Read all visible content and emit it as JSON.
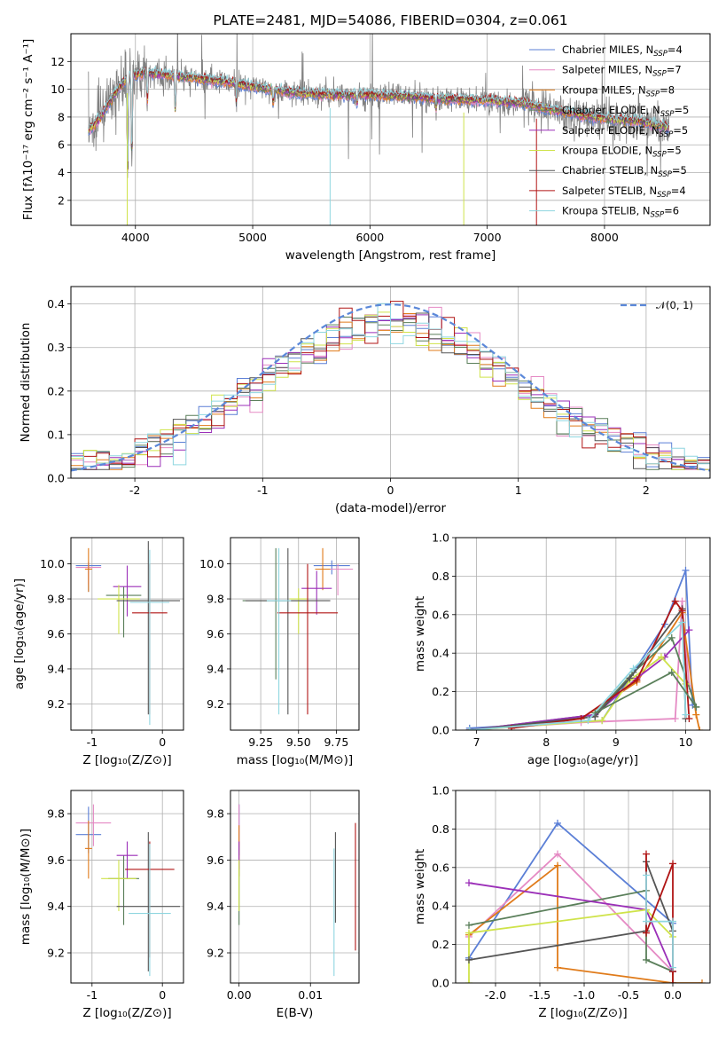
{
  "chart_data": [
    {
      "id": "spectrum",
      "type": "line",
      "title": "PLATE=2481, MJD=54086, FIBERID=0304, z=0.061",
      "xlabel": "wavelength [Angstrom, rest frame]",
      "ylabel": "Flux [fλ10⁻¹⁷ erg cm⁻² s⁻¹ A⁻¹]",
      "xlim": [
        3450,
        8900
      ],
      "ylim": [
        0.2,
        14.0
      ],
      "xticks": [
        4000,
        5000,
        6000,
        7000,
        8000
      ],
      "yticks": [
        2,
        4,
        6,
        8,
        10,
        12
      ],
      "legend_position": "upper right",
      "legend": [
        {
          "label": "Chabrier MILES, N",
          "sub": "SSP",
          "tail": "=4",
          "color": "#5b7fd6"
        },
        {
          "label": "Salpeter MILES, N",
          "sub": "SSP",
          "tail": "=7",
          "color": "#e58ac4"
        },
        {
          "label": "Kroupa MILES, N",
          "sub": "SSP",
          "tail": "=8",
          "color": "#e07b1a"
        },
        {
          "label": "Chabrier ELODIE, N",
          "sub": "SSP",
          "tail": "=5",
          "color": "#5a7f5a"
        },
        {
          "label": "Salpeter ELODIE, N",
          "sub": "SSP",
          "tail": "=5",
          "color": "#9b2fb8"
        },
        {
          "label": "Kroupa ELODIE, N",
          "sub": "SSP",
          "tail": "=5",
          "color": "#cfe34a"
        },
        {
          "label": "Chabrier STELIB, N",
          "sub": "SSP",
          "tail": "=5",
          "color": "#555555"
        },
        {
          "label": "Salpeter STELIB, N",
          "sub": "SSP",
          "tail": "=4",
          "color": "#b01515"
        },
        {
          "label": "Kroupa STELIB, N",
          "sub": "SSP",
          "tail": "=6",
          "color": "#8fd6e0"
        }
      ],
      "continuum": [
        [
          3600,
          7.0
        ],
        [
          3700,
          8.0
        ],
        [
          3850,
          10.0
        ],
        [
          3950,
          11.0
        ],
        [
          4100,
          11.2
        ],
        [
          4300,
          11.0
        ],
        [
          4500,
          10.8
        ],
        [
          4800,
          10.5
        ],
        [
          5000,
          10.2
        ],
        [
          5300,
          9.8
        ],
        [
          5600,
          9.6
        ],
        [
          6000,
          9.6
        ],
        [
          6300,
          9.5
        ],
        [
          6600,
          9.3
        ],
        [
          7000,
          9.2
        ],
        [
          7300,
          9.0
        ],
        [
          7500,
          8.6
        ],
        [
          7700,
          8.3
        ],
        [
          7900,
          8.0
        ],
        [
          8100,
          7.8
        ],
        [
          8300,
          7.7
        ],
        [
          8550,
          7.2
        ]
      ],
      "absorption_lines": [
        [
          3934,
          3.7
        ],
        [
          3969,
          4.5
        ],
        [
          4102,
          8.9
        ],
        [
          4340,
          8.2
        ],
        [
          4861,
          9.0
        ],
        [
          5175,
          8.8
        ],
        [
          5890,
          8.8
        ],
        [
          6563,
          8.6
        ]
      ],
      "model_dropouts": [
        [
          3930,
          0.2,
          "#cfe34a"
        ],
        [
          5660,
          0.2,
          "#8fd6e0"
        ],
        [
          6800,
          0.2,
          "#cfe34a"
        ],
        [
          7420,
          0.2,
          "#b01515"
        ]
      ]
    },
    {
      "id": "residuals",
      "type": "histogram",
      "xlabel": "(data-model)/error",
      "ylabel": "Normed distribution",
      "xlim": [
        -2.5,
        2.5
      ],
      "ylim": [
        0.0,
        0.44
      ],
      "xticks": [
        -2,
        -1,
        0,
        1,
        2
      ],
      "yticks": [
        0.0,
        0.1,
        0.2,
        0.3,
        0.4
      ],
      "bin_width": 0.1,
      "normal_curve_label": "𝒩(0, 1)",
      "normal_curve_color": "#5b88d9",
      "series_colors": [
        "#5b7fd6",
        "#e58ac4",
        "#e07b1a",
        "#5a7f5a",
        "#9b2fb8",
        "#cfe34a",
        "#555555",
        "#b01515",
        "#8fd6e0"
      ]
    },
    {
      "id": "age_vs_Z",
      "type": "errorbar",
      "xlabel": "Z [log₁₀(Z/Z⊙)]",
      "ylabel": "age  [log₁₀(age/yr)]",
      "xlim": [
        -1.3,
        0.3
      ],
      "ylim": [
        9.05,
        10.15
      ],
      "xticks": [
        -1,
        0
      ],
      "yticks": [
        9.2,
        9.4,
        9.6,
        9.8,
        10.0
      ],
      "points": [
        {
          "x": -1.05,
          "xerr": 0.18,
          "y": 9.99,
          "yerr": [
            0.15,
            0.02
          ],
          "color": "#5b7fd6"
        },
        {
          "x": -1.05,
          "xerr": 0.18,
          "y": 9.98,
          "yerr": [
            0.1,
            0.03
          ],
          "color": "#e58ac4"
        },
        {
          "x": -1.05,
          "xerr": 0.05,
          "y": 9.97,
          "yerr": [
            0.13,
            0.12
          ],
          "color": "#e07b1a"
        },
        {
          "x": -0.55,
          "xerr": 0.25,
          "y": 9.82,
          "yerr": [
            0.24,
            0.05
          ],
          "color": "#5a7f5a"
        },
        {
          "x": -0.5,
          "xerr": 0.2,
          "y": 9.87,
          "yerr": [
            0.17,
            0.12
          ],
          "color": "#9b2fb8"
        },
        {
          "x": -0.62,
          "xerr": 0.3,
          "y": 9.8,
          "yerr": [
            0.2,
            0.08
          ],
          "color": "#cfe34a"
        },
        {
          "x": -0.2,
          "xerr": 0.45,
          "y": 9.79,
          "yerr": [
            0.65,
            0.34
          ],
          "color": "#555555"
        },
        {
          "x": -0.18,
          "xerr": 0.25,
          "y": 9.72,
          "yerr": [
            0.58,
            0.28
          ],
          "color": "#b01515"
        },
        {
          "x": -0.18,
          "xerr": 0.28,
          "y": 9.78,
          "yerr": [
            0.7,
            0.3
          ],
          "color": "#8fd6e0"
        }
      ]
    },
    {
      "id": "age_vs_mass",
      "type": "errorbar",
      "xlabel": "mass [log₁₀(M/M⊙)]",
      "ylabel": "",
      "xlim": [
        9.05,
        9.9
      ],
      "ylim": [
        9.05,
        10.15
      ],
      "xticks": [
        9.25,
        9.5,
        9.75
      ],
      "yticks": [
        9.2,
        9.4,
        9.6,
        9.8,
        10.0
      ],
      "points": [
        {
          "x": 9.72,
          "xerr": 0.12,
          "y": 9.99,
          "yerr": [
            0.05,
            0.03
          ],
          "color": "#5b7fd6"
        },
        {
          "x": 9.76,
          "xerr": 0.1,
          "y": 9.97,
          "yerr": [
            0.15,
            0.03
          ],
          "color": "#e58ac4"
        },
        {
          "x": 9.66,
          "xerr": 0.05,
          "y": 9.97,
          "yerr": [
            0.12,
            0.12
          ],
          "color": "#e07b1a"
        },
        {
          "x": 9.35,
          "xerr": 0.22,
          "y": 9.79,
          "yerr": [
            0.45,
            0.3
          ],
          "color": "#5a7f5a"
        },
        {
          "x": 9.62,
          "xerr": 0.1,
          "y": 9.86,
          "yerr": [
            0.15,
            0.1
          ],
          "color": "#9b2fb8"
        },
        {
          "x": 9.5,
          "xerr": 0.06,
          "y": 9.8,
          "yerr": [
            0.2,
            0.06
          ],
          "color": "#cfe34a"
        },
        {
          "x": 9.43,
          "xerr": 0.28,
          "y": 9.79,
          "yerr": [
            0.65,
            0.3
          ],
          "color": "#555555"
        },
        {
          "x": 9.56,
          "xerr": 0.2,
          "y": 9.72,
          "yerr": [
            0.58,
            0.28
          ],
          "color": "#b01515"
        },
        {
          "x": 9.37,
          "xerr": 0.08,
          "y": 9.79,
          "yerr": [
            0.65,
            0.3
          ],
          "color": "#8fd6e0"
        }
      ]
    },
    {
      "id": "weight_vs_age",
      "type": "line",
      "xlabel": "age  [log₁₀(age/yr)]",
      "ylabel": "mass weight",
      "xlim": [
        6.7,
        10.35
      ],
      "ylim": [
        0.0,
        1.0
      ],
      "xticks": [
        7,
        8,
        9,
        10
      ],
      "yticks": [
        0.0,
        0.2,
        0.4,
        0.6,
        0.8,
        1.0
      ],
      "series": [
        {
          "color": "#5b7fd6",
          "x": [
            6.9,
            8.8,
            9.7,
            10.0,
            10.1
          ],
          "y": [
            0.01,
            0.05,
            0.55,
            0.83,
            0.13
          ]
        },
        {
          "color": "#e58ac4",
          "x": [
            6.9,
            8.5,
            9.85,
            9.95,
            10.05
          ],
          "y": [
            0.0,
            0.04,
            0.06,
            0.67,
            0.23
          ]
        },
        {
          "color": "#e07b1a",
          "x": [
            6.9,
            8.5,
            9.3,
            9.95,
            10.15,
            10.2
          ],
          "y": [
            0.0,
            0.06,
            0.25,
            0.61,
            0.08,
            0.0
          ]
        },
        {
          "color": "#5a7f5a",
          "x": [
            6.9,
            8.7,
            9.25,
            9.8,
            10.15
          ],
          "y": [
            0.0,
            0.08,
            0.3,
            0.48,
            0.12
          ]
        },
        {
          "color": "#9b2fb8",
          "x": [
            6.9,
            8.7,
            9.3,
            9.7,
            10.05
          ],
          "y": [
            0.0,
            0.08,
            0.27,
            0.38,
            0.52
          ]
        },
        {
          "color": "#cfe34a",
          "x": [
            6.9,
            8.8,
            9.2,
            9.65,
            10.0
          ],
          "y": [
            0.0,
            0.05,
            0.26,
            0.38,
            0.24
          ]
        },
        {
          "color": "#555555",
          "x": [
            6.9,
            8.7,
            9.2,
            9.95,
            10.0
          ],
          "y": [
            0.0,
            0.07,
            0.27,
            0.63,
            0.06
          ]
        },
        {
          "color": "#b01515",
          "x": [
            7.5,
            8.5,
            9.3,
            9.85,
            9.95,
            10.05
          ],
          "y": [
            0.01,
            0.06,
            0.26,
            0.67,
            0.62,
            0.06
          ]
        },
        {
          "color": "#8fd6e0",
          "x": [
            6.9,
            8.6,
            9.25,
            9.95,
            10.0
          ],
          "y": [
            0.0,
            0.05,
            0.32,
            0.56,
            0.08
          ]
        },
        {
          "color": "#5a7f5a",
          "x": [
            8.7,
            9.8,
            10.15
          ],
          "y": [
            0.09,
            0.3,
            0.12
          ]
        }
      ]
    },
    {
      "id": "mass_vs_Z",
      "type": "errorbar",
      "xlabel": "Z [log₁₀(Z/Z⊙)]",
      "ylabel": "mass [log₁₀(M/M⊙)]",
      "xlim": [
        -1.3,
        0.3
      ],
      "ylim": [
        9.07,
        9.9
      ],
      "xticks": [
        -1,
        0
      ],
      "yticks": [
        9.2,
        9.4,
        9.6,
        9.8
      ],
      "points": [
        {
          "x": -1.05,
          "xerr": 0.18,
          "y": 9.71,
          "yerr": [
            0.08,
            0.12
          ],
          "color": "#5b7fd6"
        },
        {
          "x": -0.98,
          "xerr": 0.25,
          "y": 9.76,
          "yerr": [
            0.1,
            0.08
          ],
          "color": "#e58ac4"
        },
        {
          "x": -1.05,
          "xerr": 0.05,
          "y": 9.65,
          "yerr": [
            0.13,
            0.12
          ],
          "color": "#e07b1a"
        },
        {
          "x": -0.55,
          "xerr": 0.22,
          "y": 9.52,
          "yerr": [
            0.2,
            0.1
          ],
          "color": "#5a7f5a"
        },
        {
          "x": -0.5,
          "xerr": 0.15,
          "y": 9.62,
          "yerr": [
            0.1,
            0.06
          ],
          "color": "#9b2fb8"
        },
        {
          "x": -0.62,
          "xerr": 0.25,
          "y": 9.52,
          "yerr": [
            0.14,
            0.08
          ],
          "color": "#cfe34a"
        },
        {
          "x": -0.2,
          "xerr": 0.45,
          "y": 9.4,
          "yerr": [
            0.28,
            0.32
          ],
          "color": "#555555"
        },
        {
          "x": -0.18,
          "xerr": 0.35,
          "y": 9.56,
          "yerr": [
            0.38,
            0.12
          ],
          "color": "#b01515"
        },
        {
          "x": -0.18,
          "xerr": 0.3,
          "y": 9.37,
          "yerr": [
            0.27,
            0.3
          ],
          "color": "#8fd6e0"
        }
      ]
    },
    {
      "id": "mass_vs_EBV",
      "type": "errorbar",
      "xlabel": "E(B-V)",
      "ylabel": "",
      "xlim": [
        -0.0012,
        0.0168
      ],
      "ylim": [
        9.07,
        9.9
      ],
      "xticks": [
        0.0,
        0.01
      ],
      "xtick_labels": [
        "0.00",
        "0.01"
      ],
      "yticks": [
        9.2,
        9.4,
        9.6,
        9.8
      ],
      "points": [
        {
          "x": 0.0,
          "y": 9.72,
          "yerr": [
            0.1,
            0.12
          ],
          "color": "#5b7fd6"
        },
        {
          "x": 0.0,
          "y": 9.76,
          "yerr": [
            0.1,
            0.08
          ],
          "color": "#e58ac4"
        },
        {
          "x": 0.0,
          "y": 9.65,
          "yerr": [
            0.12,
            0.1
          ],
          "color": "#e07b1a"
        },
        {
          "x": 0.0,
          "y": 9.5,
          "yerr": [
            0.18,
            0.1
          ],
          "color": "#5a7f5a"
        },
        {
          "x": 0.0,
          "y": 9.62,
          "yerr": [
            0.06,
            0.06
          ],
          "color": "#9b2fb8"
        },
        {
          "x": 0.0,
          "y": 9.52,
          "yerr": [
            0.14,
            0.08
          ],
          "color": "#cfe34a"
        },
        {
          "x": 0.0135,
          "y": 9.55,
          "yerr": [
            0.22,
            0.17
          ],
          "color": "#555555"
        },
        {
          "x": 0.0163,
          "y": 9.5,
          "yerr": [
            0.29,
            0.26
          ],
          "color": "#b01515"
        },
        {
          "x": 0.0133,
          "y": 9.38,
          "yerr": [
            0.28,
            0.27
          ],
          "color": "#8fd6e0"
        }
      ]
    },
    {
      "id": "weight_vs_Z",
      "type": "line",
      "xlabel": "Z [log₁₀(Z/Z⊙)]",
      "ylabel": "mass weight",
      "xlim": [
        -2.45,
        0.42
      ],
      "ylim": [
        0.0,
        1.0
      ],
      "xticks": [
        -2.0,
        -1.5,
        -1.0,
        -0.5,
        0.0
      ],
      "yticks": [
        0.0,
        0.2,
        0.4,
        0.6,
        0.8,
        1.0
      ],
      "series": [
        {
          "color": "#5b7fd6",
          "x": [
            -2.3,
            -1.3,
            0.0,
            0.0
          ],
          "y": [
            0.13,
            0.83,
            0.31,
            0.0
          ]
        },
        {
          "color": "#e58ac4",
          "x": [
            -2.3,
            -1.3,
            0.0,
            0.0
          ],
          "y": [
            0.24,
            0.67,
            0.06,
            0.0
          ]
        },
        {
          "color": "#e07b1a",
          "x": [
            -2.3,
            -1.3,
            -1.3,
            0.0,
            0.33
          ],
          "y": [
            0.25,
            0.61,
            0.08,
            0.0,
            0.0
          ]
        },
        {
          "color": "#5a7f5a",
          "x": [
            -2.3,
            -0.3,
            -0.3,
            0.0,
            0.0
          ],
          "y": [
            0.3,
            0.48,
            0.12,
            0.06,
            0.0
          ]
        },
        {
          "color": "#9b2fb8",
          "x": [
            -2.3,
            -0.3,
            0.0,
            0.0
          ],
          "y": [
            0.52,
            0.38,
            0.06,
            0.0
          ]
        },
        {
          "color": "#cfe34a",
          "x": [
            -2.3,
            -2.3,
            -0.3,
            0.0,
            0.0
          ],
          "y": [
            0.0,
            0.26,
            0.38,
            0.24,
            0.0
          ]
        },
        {
          "color": "#555555",
          "x": [
            -2.3,
            -0.3,
            -0.3,
            0.0,
            0.0
          ],
          "y": [
            0.12,
            0.27,
            0.63,
            0.27,
            0.06
          ]
        },
        {
          "color": "#b01515",
          "x": [
            -0.3,
            -0.3,
            0.0,
            0.0,
            0.0
          ],
          "y": [
            0.67,
            0.26,
            0.62,
            0.06,
            0.0
          ]
        },
        {
          "color": "#8fd6e0",
          "x": [
            -0.3,
            -0.3,
            0.0,
            0.0
          ],
          "y": [
            0.56,
            0.32,
            0.32,
            0.08
          ]
        }
      ]
    }
  ]
}
